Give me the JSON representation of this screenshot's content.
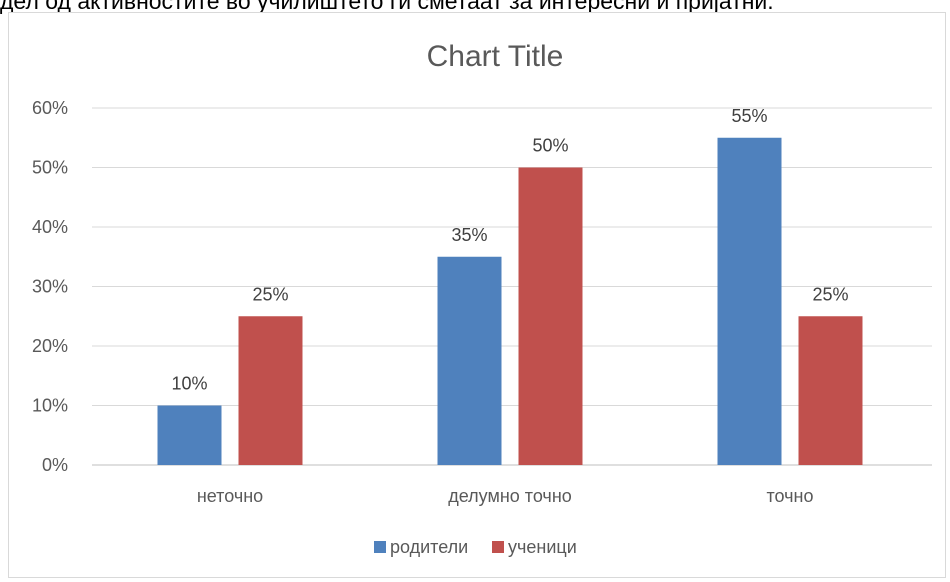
{
  "header_text": "дел од активностите во училиштето ги сметаат за интересни и пријатни.",
  "chart_data": {
    "type": "bar",
    "title": "Chart Title",
    "categories": [
      "неточно",
      "делумно точно",
      "точно"
    ],
    "series": [
      {
        "name": "родители",
        "color": "#4f81bd",
        "values": [
          10,
          35,
          55
        ]
      },
      {
        "name": "ученици",
        "color": "#c0504d",
        "values": [
          25,
          50,
          25
        ]
      }
    ],
    "ylim": [
      0,
      60
    ],
    "yticks": [
      0,
      10,
      20,
      30,
      40,
      50,
      60
    ],
    "y_unit": "%",
    "data_labels": true,
    "grid": true,
    "legend_position": "bottom",
    "xlabel": "",
    "ylabel": ""
  }
}
